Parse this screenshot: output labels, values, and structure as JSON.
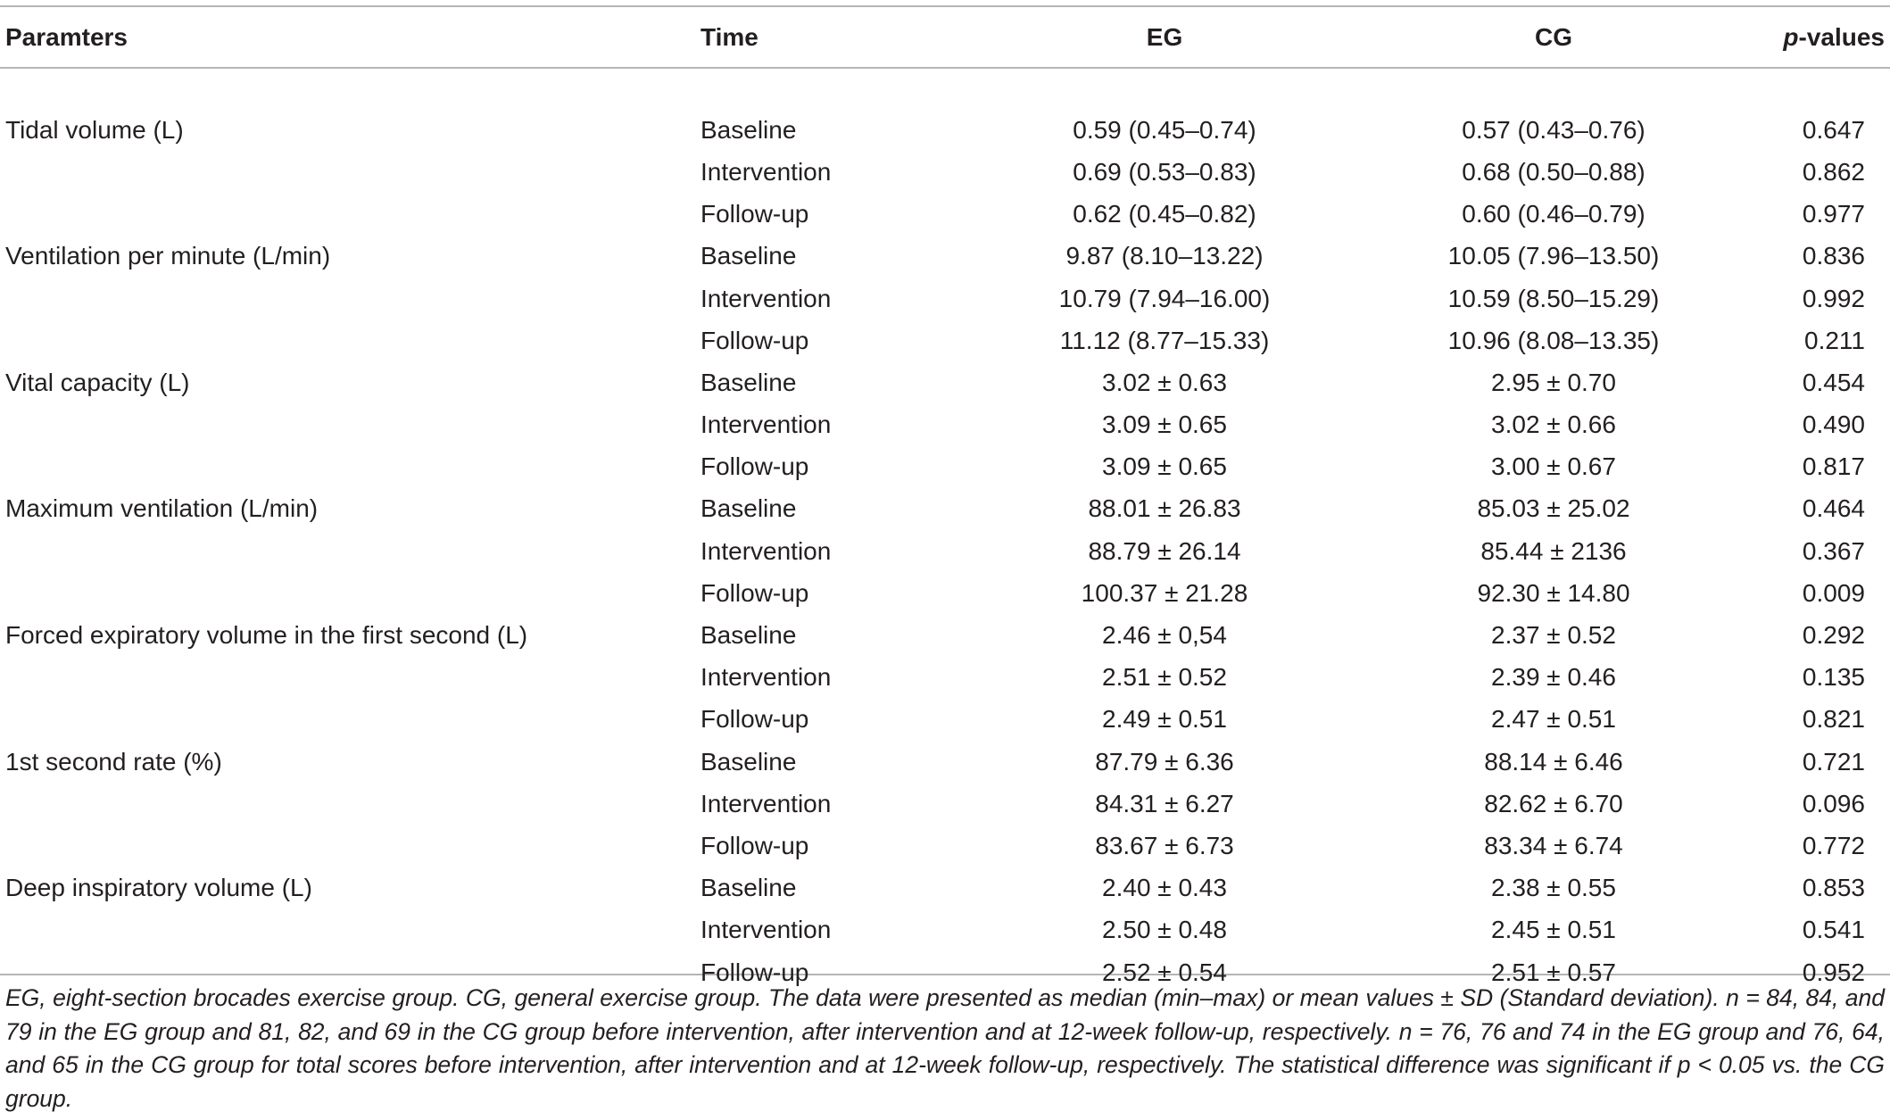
{
  "header": {
    "parameters": "Paramters",
    "time": "Time",
    "eg": "EG",
    "cg": "CG",
    "p_prefix": "p",
    "p_suffix": "-values"
  },
  "rows": [
    {
      "param": "Tidal volume (L)",
      "time": "Baseline",
      "eg": "0.59 (0.45–0.74)",
      "cg": "0.57 (0.43–0.76)",
      "p": "0.647"
    },
    {
      "param": "",
      "time": "Intervention",
      "eg": "0.69 (0.53–0.83)",
      "cg": "0.68 (0.50–0.88)",
      "p": "0.862"
    },
    {
      "param": "",
      "time": "Follow-up",
      "eg": "0.62 (0.45–0.82)",
      "cg": "0.60 (0.46–0.79)",
      "p": "0.977"
    },
    {
      "param": "Ventilation per minute (L/min)",
      "time": "Baseline",
      "eg": "9.87 (8.10–13.22)",
      "cg": "10.05 (7.96–13.50)",
      "p": "0.836"
    },
    {
      "param": "",
      "time": "Intervention",
      "eg": "10.79 (7.94–16.00)",
      "cg": "10.59 (8.50–15.29)",
      "p": "0.992"
    },
    {
      "param": "",
      "time": "Follow-up",
      "eg": "11.12 (8.77–15.33)",
      "cg": "10.96 (8.08–13.35)",
      "p": "0.211"
    },
    {
      "param": "Vital capacity (L)",
      "time": "Baseline",
      "eg": "3.02 ± 0.63",
      "cg": "2.95 ± 0.70",
      "p": "0.454"
    },
    {
      "param": "",
      "time": "Intervention",
      "eg": "3.09 ± 0.65",
      "cg": "3.02 ± 0.66",
      "p": "0.490"
    },
    {
      "param": "",
      "time": "Follow-up",
      "eg": "3.09 ± 0.65",
      "cg": "3.00 ± 0.67",
      "p": "0.817"
    },
    {
      "param": "Maximum ventilation (L/min)",
      "time": "Baseline",
      "eg": "88.01 ± 26.83",
      "cg": "85.03 ± 25.02",
      "p": "0.464"
    },
    {
      "param": "",
      "time": "Intervention",
      "eg": "88.79 ± 26.14",
      "cg": "85.44 ± 2136",
      "p": "0.367"
    },
    {
      "param": "",
      "time": "Follow-up",
      "eg": "100.37 ± 21.28",
      "cg": "92.30 ± 14.80",
      "p": "0.009"
    },
    {
      "param": "Forced expiratory volume in the first second (L)",
      "time": "Baseline",
      "eg": "2.46 ± 0,54",
      "cg": "2.37 ± 0.52",
      "p": "0.292"
    },
    {
      "param": "",
      "time": "Intervention",
      "eg": "2.51 ± 0.52",
      "cg": "2.39 ± 0.46",
      "p": "0.135"
    },
    {
      "param": "",
      "time": "Follow-up",
      "eg": "2.49 ± 0.51",
      "cg": "2.47 ± 0.51",
      "p": "0.821"
    },
    {
      "param": "1st second rate (%)",
      "time": "Baseline",
      "eg": "87.79 ± 6.36",
      "cg": "88.14 ± 6.46",
      "p": "0.721"
    },
    {
      "param": "",
      "time": "Intervention",
      "eg": "84.31 ± 6.27",
      "cg": "82.62 ± 6.70",
      "p": "0.096"
    },
    {
      "param": "",
      "time": "Follow-up",
      "eg": "83.67 ± 6.73",
      "cg": "83.34 ± 6.74",
      "p": "0.772"
    },
    {
      "param": "Deep inspiratory volume (L)",
      "time": "Baseline",
      "eg": "2.40 ± 0.43",
      "cg": "2.38 ± 0.55",
      "p": "0.853"
    },
    {
      "param": "",
      "time": "Intervention",
      "eg": "2.50 ± 0.48",
      "cg": "2.45 ± 0.51",
      "p": "0.541"
    },
    {
      "param": "",
      "time": "Follow-up",
      "eg": "2.52 ± 0.54",
      "cg": "2.51 ± 0.57",
      "p": "0.952"
    }
  ],
  "footnote": "EG, eight-section brocades exercise group. CG, general exercise group. The data were presented as median (min–max) or mean values ± SD (Standard deviation). n = 84, 84, and 79 in the EG group and 81, 82, and 69 in the CG group before intervention, after intervention and at 12-week follow-up, respectively. n = 76, 76 and 74 in the EG group and 76, 64, and 65 in the CG group for total scores before intervention, after intervention and at 12-week follow-up, respectively. The statistical difference was significant if p < 0.05 vs. the CG group."
}
